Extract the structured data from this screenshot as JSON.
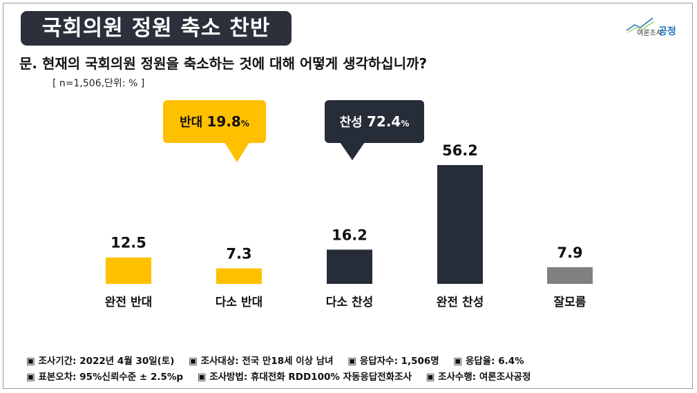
{
  "title": "국회의원 정원 축소 찬반",
  "logo": {
    "small": "여론조사",
    "main": "공정"
  },
  "question": "문. 현재의 국회의원 정원을 축소하는 것에 대해 어떻게 생각하십니까?",
  "sample_note": "[ n=1,506,단위: % ]",
  "chart_data": {
    "type": "bar",
    "categories": [
      "완전 반대",
      "다소 반대",
      "다소 찬성",
      "완전 찬성",
      "잘모름"
    ],
    "values": [
      12.5,
      7.3,
      16.2,
      56.2,
      7.9
    ],
    "value_labels": [
      "12.5",
      "7.3",
      "16.2",
      "56.2",
      "7.9"
    ],
    "ylim": [
      0,
      60
    ],
    "colors": [
      "#ffc000",
      "#ffc000",
      "#262c38",
      "#262c38",
      "#808080"
    ],
    "annotations": [
      {
        "label": "반대",
        "value": "19.8",
        "unit": "%",
        "color": "#ffc000",
        "text_color": "#111111"
      },
      {
        "label": "찬성",
        "value": "72.4",
        "unit": "%",
        "color": "#262c38",
        "text_color": "#ffffff"
      }
    ]
  },
  "footer": {
    "line1": [
      "▣ 조사기간: 2022년 4월 30일(토)",
      "▣ 조사대상: 전국 만18세 이상 남녀",
      "▣ 응답자수: 1,506명",
      "▣ 응답율: 6.4%"
    ],
    "line2": [
      "▣ 표본오차: 95%신뢰수준 ± 2.5%p",
      "▣ 조사방법: 휴대전화 RDD100%  자동응답전화조사",
      "▣ 조사수행: 여론조사공정"
    ]
  }
}
